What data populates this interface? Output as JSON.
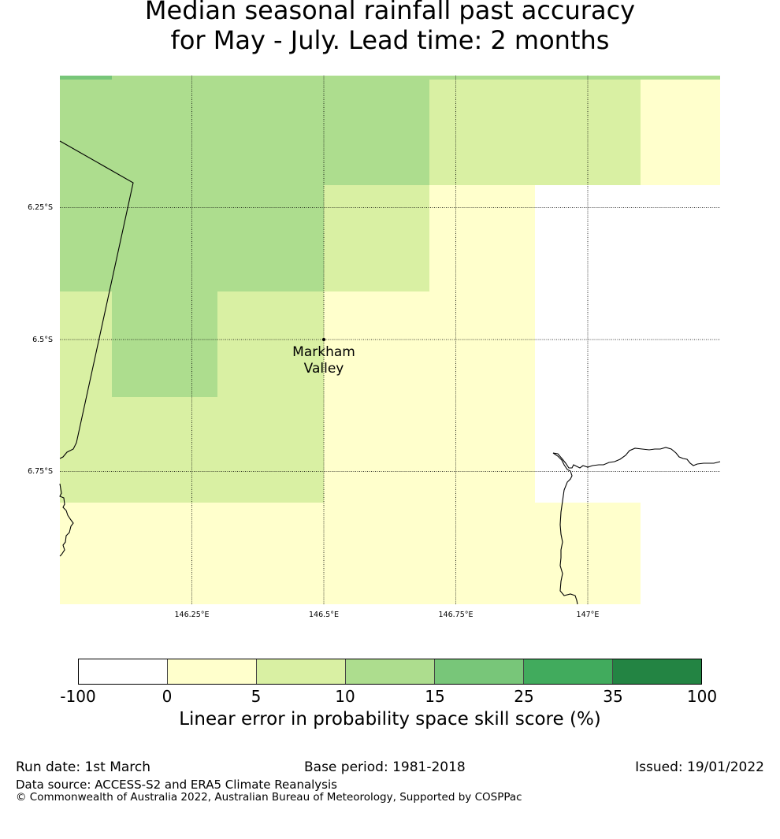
{
  "title": {
    "line1": "Median seasonal rainfall past accuracy",
    "line2": "for May - July. Lead time: 2 months"
  },
  "map": {
    "place_label": [
      "Markham",
      "Valley"
    ],
    "lat_labels": [
      "6.25°S",
      "6.5°S",
      "6.75°S"
    ],
    "lon_labels": [
      "146.25°E",
      "146.5°E",
      "146.75°E",
      "147°E"
    ],
    "lat_values": [
      -6.25,
      -6.5,
      -6.75
    ],
    "lon_values": [
      146.25,
      146.5,
      146.75,
      147.0
    ]
  },
  "legend": {
    "ticks": [
      "-100",
      "0",
      "5",
      "10",
      "15",
      "25",
      "35",
      "100"
    ],
    "colors": [
      "#ffffff",
      "#ffffcc",
      "#d9f0a3",
      "#addd8e",
      "#78c679",
      "#41ab5d",
      "#238443"
    ],
    "label": "Linear error in probability space skill score (%)"
  },
  "footer": {
    "run_date": "Run date: 1st March",
    "base_period": "Base period: 1981-2018",
    "issued": "Issued: 19/01/2022",
    "data_source": "Data source: ACCESS-S2 and ERA5 Climate Reanalysis",
    "copyright": "© Commonwealth of Australia 2022, Australian Bureau of Meteorology, Supported by COSPPac"
  }
}
